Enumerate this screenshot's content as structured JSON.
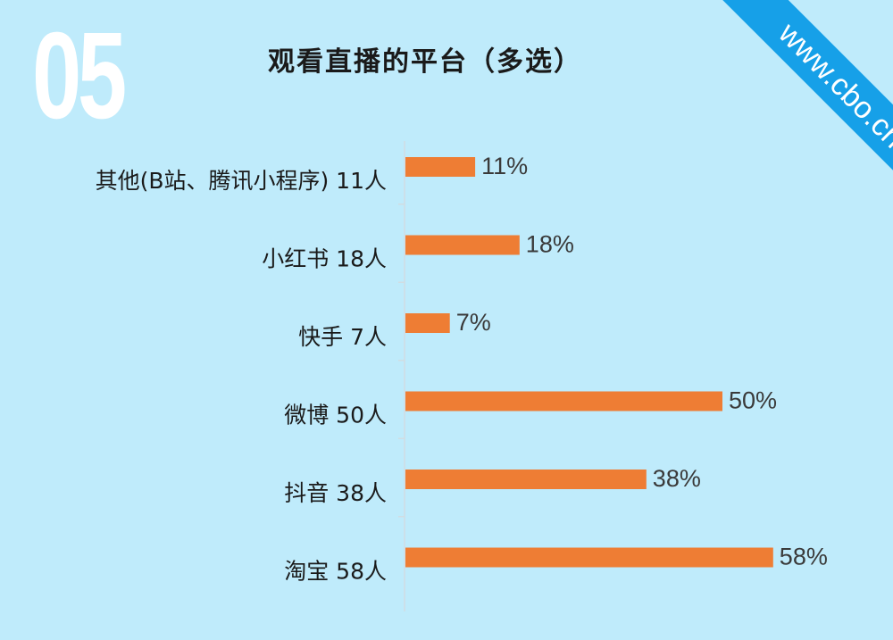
{
  "header": {
    "page_number": "05",
    "title": "观看直播的平台（多选）"
  },
  "watermark": {
    "text": "www.cbo.cn",
    "color": "#16a0e8"
  },
  "colors": {
    "background": "#bfebfb",
    "bar": "#ee7d34"
  },
  "chart_data": {
    "type": "bar",
    "orientation": "horizontal",
    "categories": [
      "其他(B站、腾讯小程序) 11人",
      "小红书 18人",
      "快手 7人",
      "微博 50人",
      "抖音 38人",
      "淘宝 58人"
    ],
    "values": [
      11,
      18,
      7,
      50,
      38,
      58
    ],
    "data_labels": [
      "11%",
      "18%",
      "7%",
      "50%",
      "38%",
      "58%"
    ],
    "unit": "%",
    "title": "观看直播的平台（多选）",
    "xlabel": "",
    "ylabel": "",
    "xlim": [
      0,
      60
    ],
    "grid": false,
    "legend": "none"
  }
}
